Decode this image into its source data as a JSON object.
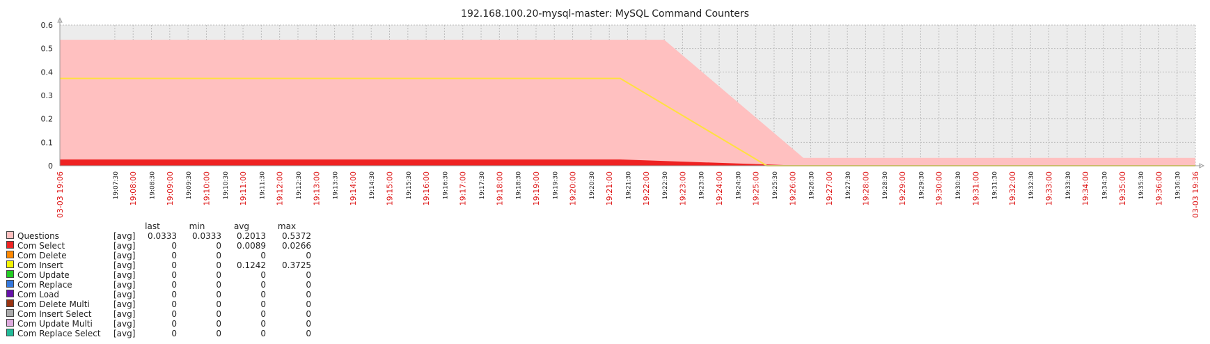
{
  "chart_data": {
    "type": "area",
    "title": "192.168.100.20-mysql-master: MySQL Command Counters",
    "x_start": "19:06",
    "x_end": "19:36",
    "y_ticks": [
      "0",
      "0.1",
      "0.2",
      "0.3",
      "0.4",
      "0.5",
      "0.6"
    ],
    "ylim": [
      0,
      0.6
    ],
    "grid": true,
    "x_tick_labels": [
      {
        "t": 0,
        "label": "03-03 19:06",
        "major": true
      },
      {
        "t": 1.5,
        "label": "19:07:30",
        "major": false
      },
      {
        "t": 2,
        "label": "19:08:00",
        "major": true
      },
      {
        "t": 2.5,
        "label": "19:08:30",
        "major": false
      },
      {
        "t": 3,
        "label": "19:09:00",
        "major": true
      },
      {
        "t": 3.5,
        "label": "19:09:30",
        "major": false
      },
      {
        "t": 4,
        "label": "19:10:00",
        "major": true
      },
      {
        "t": 4.5,
        "label": "19:10:30",
        "major": false
      },
      {
        "t": 5,
        "label": "19:11:00",
        "major": true
      },
      {
        "t": 5.5,
        "label": "19:11:30",
        "major": false
      },
      {
        "t": 6,
        "label": "19:12:00",
        "major": true
      },
      {
        "t": 6.5,
        "label": "19:12:30",
        "major": false
      },
      {
        "t": 7,
        "label": "19:13:00",
        "major": true
      },
      {
        "t": 7.5,
        "label": "19:13:30",
        "major": false
      },
      {
        "t": 8,
        "label": "19:14:00",
        "major": true
      },
      {
        "t": 8.5,
        "label": "19:14:30",
        "major": false
      },
      {
        "t": 9,
        "label": "19:15:00",
        "major": true
      },
      {
        "t": 9.5,
        "label": "19:15:30",
        "major": false
      },
      {
        "t": 10,
        "label": "19:16:00",
        "major": true
      },
      {
        "t": 10.5,
        "label": "19:16:30",
        "major": false
      },
      {
        "t": 11,
        "label": "19:17:00",
        "major": true
      },
      {
        "t": 11.5,
        "label": "19:17:30",
        "major": false
      },
      {
        "t": 12,
        "label": "19:18:00",
        "major": true
      },
      {
        "t": 12.5,
        "label": "19:18:30",
        "major": false
      },
      {
        "t": 13,
        "label": "19:19:00",
        "major": true
      },
      {
        "t": 13.5,
        "label": "19:19:30",
        "major": false
      },
      {
        "t": 14,
        "label": "19:20:00",
        "major": true
      },
      {
        "t": 14.5,
        "label": "19:20:30",
        "major": false
      },
      {
        "t": 15,
        "label": "19:21:00",
        "major": true
      },
      {
        "t": 15.5,
        "label": "19:21:30",
        "major": false
      },
      {
        "t": 16,
        "label": "19:22:00",
        "major": true
      },
      {
        "t": 16.5,
        "label": "19:22:30",
        "major": false
      },
      {
        "t": 17,
        "label": "19:23:00",
        "major": true
      },
      {
        "t": 17.5,
        "label": "19:23:30",
        "major": false
      },
      {
        "t": 18,
        "label": "19:24:00",
        "major": true
      },
      {
        "t": 18.5,
        "label": "19:24:30",
        "major": false
      },
      {
        "t": 19,
        "label": "19:25:00",
        "major": true
      },
      {
        "t": 19.5,
        "label": "19:25:30",
        "major": false
      },
      {
        "t": 20,
        "label": "19:26:00",
        "major": true
      },
      {
        "t": 20.5,
        "label": "19:26:30",
        "major": false
      },
      {
        "t": 21,
        "label": "19:27:00",
        "major": true
      },
      {
        "t": 21.5,
        "label": "19:27:30",
        "major": false
      },
      {
        "t": 22,
        "label": "19:28:00",
        "major": true
      },
      {
        "t": 22.5,
        "label": "19:28:30",
        "major": false
      },
      {
        "t": 23,
        "label": "19:29:00",
        "major": true
      },
      {
        "t": 23.5,
        "label": "19:29:30",
        "major": false
      },
      {
        "t": 24,
        "label": "19:30:00",
        "major": true
      },
      {
        "t": 24.5,
        "label": "19:30:30",
        "major": false
      },
      {
        "t": 25,
        "label": "19:31:00",
        "major": true
      },
      {
        "t": 25.5,
        "label": "19:31:30",
        "major": false
      },
      {
        "t": 26,
        "label": "19:32:00",
        "major": true
      },
      {
        "t": 26.5,
        "label": "19:32:30",
        "major": false
      },
      {
        "t": 27,
        "label": "19:33:00",
        "major": true
      },
      {
        "t": 27.5,
        "label": "19:33:30",
        "major": false
      },
      {
        "t": 28,
        "label": "19:34:00",
        "major": true
      },
      {
        "t": 28.5,
        "label": "19:34:30",
        "major": false
      },
      {
        "t": 29,
        "label": "19:35:00",
        "major": true
      },
      {
        "t": 29.5,
        "label": "19:35:30",
        "major": false
      },
      {
        "t": 30,
        "label": "19:36:00",
        "major": true
      },
      {
        "t": 30.5,
        "label": "19:36:30",
        "major": false
      },
      {
        "t": 31,
        "label": "03-03 19:36",
        "major": true
      }
    ],
    "series": [
      {
        "name": "Questions",
        "color": "#FFC0C0",
        "style": "area",
        "points": [
          [
            0,
            0.5372
          ],
          [
            16.5,
            0.5372
          ],
          [
            20.3,
            0.0333
          ],
          [
            31,
            0.0333
          ]
        ]
      },
      {
        "name": "Com Select",
        "color": "#EE2222",
        "style": "area",
        "points": [
          [
            0,
            0.0266
          ],
          [
            15.3,
            0.0266
          ],
          [
            20.3,
            0.0
          ],
          [
            31,
            0.0
          ]
        ]
      },
      {
        "name": "Com Insert",
        "color": "#FFE040",
        "style": "line",
        "points": [
          [
            0,
            0.3725
          ],
          [
            15.3,
            0.3725
          ],
          [
            19.3,
            0.0
          ],
          [
            31,
            0.0
          ]
        ]
      }
    ]
  },
  "legend": {
    "headers": {
      "last": "last",
      "min": "min",
      "avg": "avg",
      "max": "max"
    },
    "rows": [
      {
        "name": "Questions",
        "fn": "[avg]",
        "last": "0.0333",
        "min": "0.0333",
        "avg": "0.2013",
        "max": "0.5372",
        "color": "#FFC0C0"
      },
      {
        "name": "Com Select",
        "fn": "[avg]",
        "last": "0",
        "min": "0",
        "avg": "0.0089",
        "max": "0.0266",
        "color": "#EE2222"
      },
      {
        "name": "Com Delete",
        "fn": "[avg]",
        "last": "0",
        "min": "0",
        "avg": "0",
        "max": "0",
        "color": "#FF8800"
      },
      {
        "name": "Com Insert",
        "fn": "[avg]",
        "last": "0",
        "min": "0",
        "avg": "0.1242",
        "max": "0.3725",
        "color": "#F4F400"
      },
      {
        "name": "Com Update",
        "fn": "[avg]",
        "last": "0",
        "min": "0",
        "avg": "0",
        "max": "0",
        "color": "#22CC22"
      },
      {
        "name": "Com Replace",
        "fn": "[avg]",
        "last": "0",
        "min": "0",
        "avg": "0",
        "max": "0",
        "color": "#3377DD"
      },
      {
        "name": "Com Load",
        "fn": "[avg]",
        "last": "0",
        "min": "0",
        "avg": "0",
        "max": "0",
        "color": "#6611AA"
      },
      {
        "name": "Com Delete Multi",
        "fn": "[avg]",
        "last": "0",
        "min": "0",
        "avg": "0",
        "max": "0",
        "color": "#993311"
      },
      {
        "name": "Com Insert Select",
        "fn": "[avg]",
        "last": "0",
        "min": "0",
        "avg": "0",
        "max": "0",
        "color": "#AAAAAA"
      },
      {
        "name": "Com Update Multi",
        "fn": "[avg]",
        "last": "0",
        "min": "0",
        "avg": "0",
        "max": "0",
        "color": "#DDAADD"
      },
      {
        "name": "Com Replace Select",
        "fn": "[avg]",
        "last": "0",
        "min": "0",
        "avg": "0",
        "max": "0",
        "color": "#22BB99"
      }
    ]
  }
}
